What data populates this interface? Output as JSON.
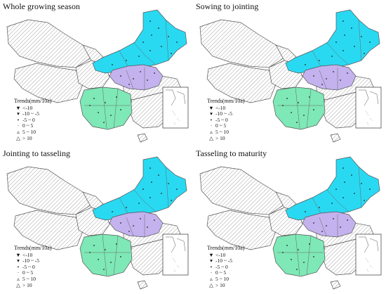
{
  "panels": [
    {
      "title": "Whole  growing  season"
    },
    {
      "title": "Sowing to jointing"
    },
    {
      "title": "Jointing to tasseling"
    },
    {
      "title": "Tasseling to maturity"
    }
  ],
  "legend": {
    "title": "Trends(mm/10a)",
    "items": [
      {
        "symbol": "▼",
        "label": "<-10"
      },
      {
        "symbol": "▾",
        "label": "-10 ~ -5"
      },
      {
        "symbol": "•",
        "label": "-5 ~ 0"
      },
      {
        "symbol": "·",
        "label": "0 ~ 5"
      },
      {
        "symbol": "▵",
        "label": "5 ~ 10"
      },
      {
        "symbol": "△",
        "label": "> 10"
      }
    ]
  },
  "colors": {
    "northeast": "#29d9f2",
    "huang_huai_hai": "#c3b2ee",
    "southwest": "#7ee8b6",
    "other": "#ffffff",
    "border": "#555555"
  }
}
